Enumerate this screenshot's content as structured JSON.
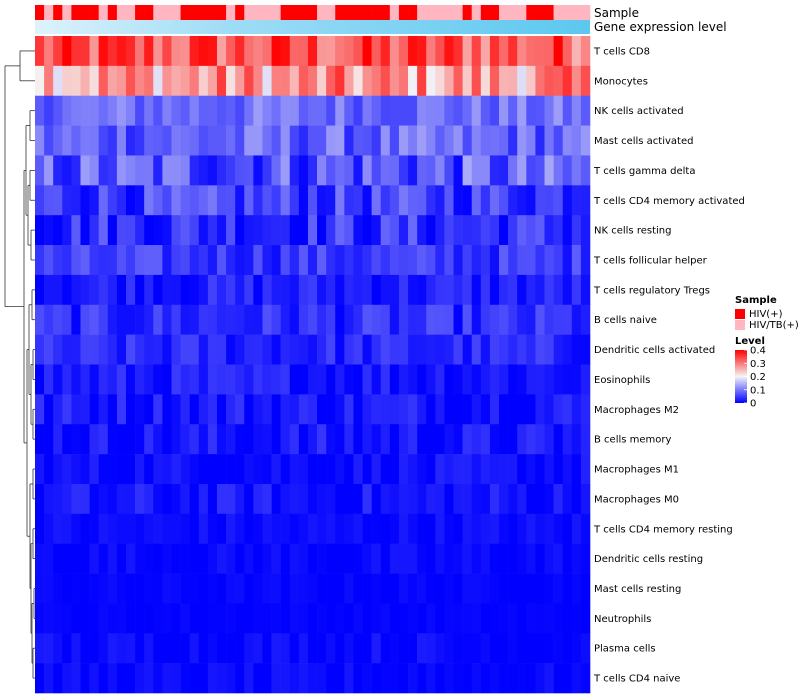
{
  "chart_data": {
    "type": "heatmap",
    "title": "",
    "annotation_tracks": [
      {
        "label": "Sample",
        "kind": "categorical"
      },
      {
        "label": "Gene expression level",
        "kind": "continuous",
        "color": "#5bc8f0"
      }
    ],
    "sample_groups": [
      "HIV(+)",
      "HIV/TB(+)",
      "HIV(+)",
      "HIV/TB(+)",
      "HIV(+)",
      "HIV(+)",
      "HIV(+)",
      "HIV/TB(+)",
      "HIV(+)",
      "HIV/TB(+)",
      "HIV/TB(+)",
      "HIV(+)",
      "HIV(+)",
      "HIV/TB(+)",
      "HIV/TB(+)",
      "HIV/TB(+)",
      "HIV(+)",
      "HIV(+)",
      "HIV(+)",
      "HIV(+)",
      "HIV(+)",
      "HIV/TB(+)",
      "HIV(+)",
      "HIV/TB(+)",
      "HIV/TB(+)",
      "HIV/TB(+)",
      "HIV/TB(+)",
      "HIV(+)",
      "HIV(+)",
      "HIV(+)",
      "HIV(+)",
      "HIV/TB(+)",
      "HIV/TB(+)",
      "HIV(+)",
      "HIV(+)",
      "HIV(+)",
      "HIV(+)",
      "HIV(+)",
      "HIV(+)",
      "HIV/TB(+)",
      "HIV(+)",
      "HIV(+)",
      "HIV/TB(+)",
      "HIV/TB(+)",
      "HIV/TB(+)",
      "HIV/TB(+)",
      "HIV/TB(+)",
      "HIV(+)",
      "HIV/TB(+)",
      "HIV(+)",
      "HIV(+)",
      "HIV/TB(+)",
      "HIV/TB(+)",
      "HIV/TB(+)",
      "HIV(+)",
      "HIV(+)",
      "HIV(+)",
      "HIV/TB(+)",
      "HIV/TB(+)",
      "HIV/TB(+)",
      "HIV/TB(+)"
    ],
    "rows": [
      {
        "name": "T cells CD8",
        "base": 0.33,
        "spread": 0.08
      },
      {
        "name": "Monocytes",
        "base": 0.27,
        "spread": 0.09
      },
      {
        "name": "NK cells activated",
        "base": 0.09,
        "spread": 0.04
      },
      {
        "name": "Mast cells activated",
        "base": 0.08,
        "spread": 0.05
      },
      {
        "name": "T cells gamma delta",
        "base": 0.07,
        "spread": 0.07
      },
      {
        "name": "T cells CD4 memory activated",
        "base": 0.05,
        "spread": 0.05
      },
      {
        "name": "NK cells resting",
        "base": 0.04,
        "spread": 0.05
      },
      {
        "name": "T cells follicular helper",
        "base": 0.045,
        "spread": 0.035
      },
      {
        "name": "T cells regulatory  Tregs",
        "base": 0.025,
        "spread": 0.03
      },
      {
        "name": "B cells naive",
        "base": 0.035,
        "spread": 0.035
      },
      {
        "name": "Dendritic cells activated",
        "base": 0.03,
        "spread": 0.03
      },
      {
        "name": "Eosinophils",
        "base": 0.02,
        "spread": 0.03
      },
      {
        "name": "Macrophages M2",
        "base": 0.02,
        "spread": 0.03
      },
      {
        "name": "B cells memory",
        "base": 0.015,
        "spread": 0.03
      },
      {
        "name": "Macrophages M1",
        "base": 0.01,
        "spread": 0.02
      },
      {
        "name": "Macrophages M0",
        "base": 0.012,
        "spread": 0.03
      },
      {
        "name": "T cells CD4 memory resting",
        "base": 0.008,
        "spread": 0.015
      },
      {
        "name": "Dendritic cells resting",
        "base": 0.005,
        "spread": 0.015
      },
      {
        "name": "Mast cells resting",
        "base": 0.003,
        "spread": 0.008
      },
      {
        "name": "Neutrophils",
        "base": 0.002,
        "spread": 0.006
      },
      {
        "name": "Plasma cells",
        "base": 0.005,
        "spread": 0.02
      },
      {
        "name": "T cells CD4 naive",
        "base": 0.004,
        "spread": 0.015
      }
    ],
    "color_scale": {
      "min": 0,
      "max": 0.4,
      "mid": 0.2,
      "low_color": "#0000ff",
      "mid_color": "#f5f5f5",
      "high_color": "#ff0000"
    },
    "legend": {
      "sample": {
        "title": "Sample",
        "items": [
          {
            "label": "HIV(+)",
            "color": "#ff0000"
          },
          {
            "label": "HIV/TB(+)",
            "color": "#ffb6c1"
          }
        ]
      },
      "level": {
        "title": "Level",
        "ticks": [
          0.4,
          0.3,
          0.2,
          0.1,
          0
        ]
      }
    },
    "dendrogram": "rows"
  }
}
